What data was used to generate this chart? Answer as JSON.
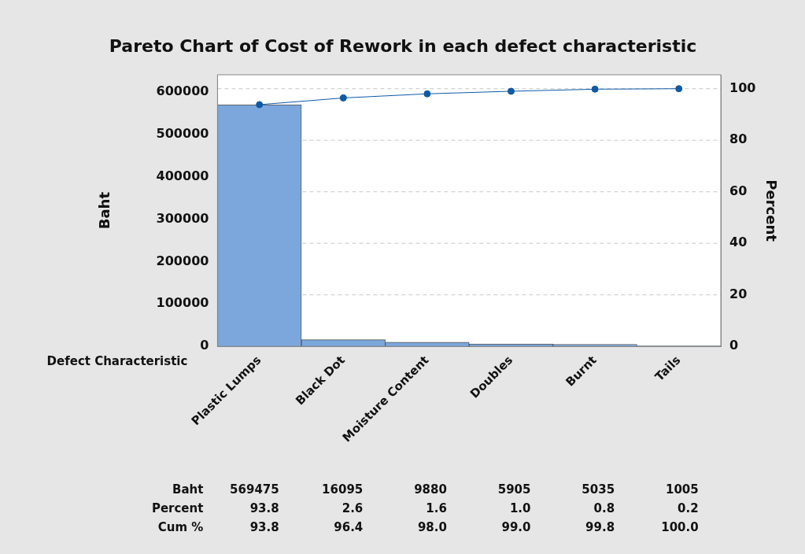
{
  "chart_data": {
    "type": "bar",
    "title": "Pareto Chart of Cost of Rework in each defect characteristic",
    "xlabel": "Defect Characteristic",
    "ylabel": "Baht",
    "y2label": "Percent",
    "categories": [
      "Plastic Lumps",
      "Black Dot",
      "Moisture Content",
      "Doubles",
      "Burnt",
      "Tails"
    ],
    "series": [
      {
        "color": "#7ba7dc",
        "values": [
          569475,
          16095,
          9880,
          5905,
          5035,
          1005
        ],
        "value_labels": [
          "569475",
          "16095",
          "9880",
          "5905",
          "5035",
          "1005"
        ]
      },
      {
        "type": "line",
        "axis": "y2",
        "color": "#0d5aa7",
        "values": [
          93.8,
          96.4,
          98.0,
          99.0,
          99.8,
          100.0
        ],
        "value_labels": [
          "93.8",
          "96.4",
          "98.0",
          "99.0",
          "99.8",
          "100.0"
        ]
      }
    ],
    "annotations": [
      "Baht",
      "Percent",
      "93.8",
      "2.6",
      "1.6",
      "1.0",
      "0.8",
      "0.2",
      "Cum %"
    ],
    "ylim": [
      0,
      640000
    ],
    "yticks": [
      0,
      100000,
      200000,
      300000,
      400000,
      500000,
      600000
    ],
    "y2lim": [
      0,
      105.4
    ],
    "y2ticks": [
      0,
      20,
      40,
      60,
      80,
      100
    ],
    "grid": "y",
    "marker": "circle"
  }
}
